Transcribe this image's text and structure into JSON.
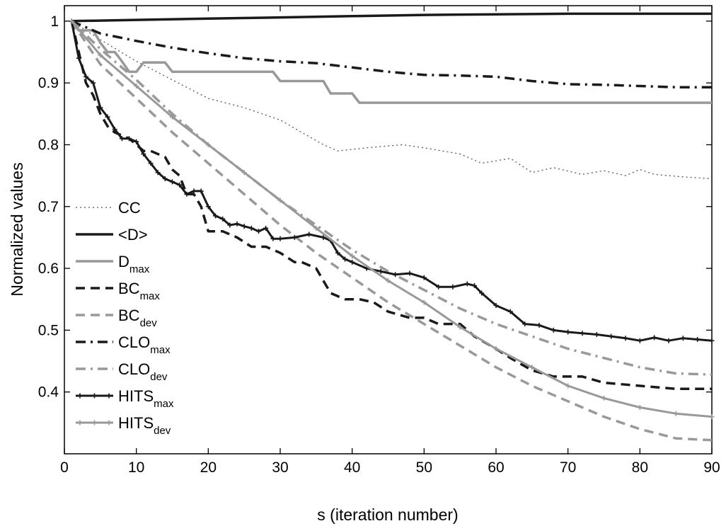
{
  "chart_data": {
    "type": "line",
    "xlabel": "s (iteration number)",
    "ylabel": "Normalized values",
    "xlim": [
      0,
      90
    ],
    "ylim": [
      0.3,
      1.025
    ],
    "x_ticks": [
      0,
      10,
      20,
      30,
      40,
      50,
      60,
      70,
      80,
      90
    ],
    "y_ticks": [
      0.4,
      0.5,
      0.6,
      0.7,
      0.8,
      0.9,
      1
    ],
    "grid": false,
    "legend_placement": "middle-left",
    "series": [
      {
        "name": "CC",
        "legend_main": "CC",
        "legend_sub": "",
        "color": "#555555",
        "style": "dotted",
        "width": 1.3,
        "marker": false,
        "points": [
          [
            1,
            1.0
          ],
          [
            5,
            0.97
          ],
          [
            10,
            0.935
          ],
          [
            15,
            0.905
          ],
          [
            20,
            0.875
          ],
          [
            25,
            0.86
          ],
          [
            30,
            0.84
          ],
          [
            33,
            0.82
          ],
          [
            36,
            0.8
          ],
          [
            38,
            0.79
          ],
          [
            42,
            0.795
          ],
          [
            47,
            0.8
          ],
          [
            50,
            0.795
          ],
          [
            55,
            0.785
          ],
          [
            58,
            0.77
          ],
          [
            62,
            0.778
          ],
          [
            65,
            0.755
          ],
          [
            68,
            0.763
          ],
          [
            72,
            0.752
          ],
          [
            75,
            0.758
          ],
          [
            78,
            0.75
          ],
          [
            80,
            0.76
          ],
          [
            82,
            0.752
          ],
          [
            86,
            0.748
          ],
          [
            90,
            0.745
          ]
        ]
      },
      {
        "name": "<D>",
        "legend_main": "<D>",
        "legend_sub": "",
        "color": "#1a1a1a",
        "style": "solid",
        "width": 3.5,
        "marker": false,
        "points": [
          [
            1,
            1.0
          ],
          [
            10,
            1.002
          ],
          [
            20,
            1.004
          ],
          [
            30,
            1.006
          ],
          [
            40,
            1.008
          ],
          [
            50,
            1.01
          ],
          [
            60,
            1.011
          ],
          [
            70,
            1.012
          ],
          [
            80,
            1.012
          ],
          [
            90,
            1.012
          ]
        ]
      },
      {
        "name": "Dmax",
        "legend_main": "D",
        "legend_sub": "max",
        "color": "#999999",
        "style": "solid",
        "width": 3.5,
        "marker": false,
        "points": [
          [
            1,
            1.0
          ],
          [
            2,
            0.985
          ],
          [
            4,
            0.985
          ],
          [
            5,
            0.965
          ],
          [
            6,
            0.95
          ],
          [
            7,
            0.95
          ],
          [
            8,
            0.935
          ],
          [
            9,
            0.918
          ],
          [
            10,
            0.918
          ],
          [
            11,
            0.933
          ],
          [
            14,
            0.933
          ],
          [
            15,
            0.918
          ],
          [
            29,
            0.918
          ],
          [
            30,
            0.903
          ],
          [
            36,
            0.903
          ],
          [
            37,
            0.883
          ],
          [
            40,
            0.883
          ],
          [
            41,
            0.868
          ],
          [
            90,
            0.868
          ]
        ]
      },
      {
        "name": "BCmax",
        "legend_main": "BC",
        "legend_sub": "max",
        "color": "#1a1a1a",
        "style": "dashed",
        "width": 3.5,
        "marker": false,
        "points": [
          [
            1,
            1.0
          ],
          [
            2,
            0.95
          ],
          [
            3,
            0.9
          ],
          [
            4,
            0.88
          ],
          [
            5,
            0.85
          ],
          [
            6,
            0.83
          ],
          [
            7,
            0.82
          ],
          [
            9,
            0.81
          ],
          [
            10,
            0.8
          ],
          [
            11,
            0.79
          ],
          [
            12,
            0.79
          ],
          [
            14,
            0.78
          ],
          [
            15,
            0.76
          ],
          [
            16,
            0.75
          ],
          [
            17,
            0.72
          ],
          [
            18,
            0.72
          ],
          [
            19,
            0.7
          ],
          [
            20,
            0.66
          ],
          [
            22,
            0.66
          ],
          [
            24,
            0.65
          ],
          [
            26,
            0.635
          ],
          [
            28,
            0.635
          ],
          [
            30,
            0.625
          ],
          [
            32,
            0.61
          ],
          [
            33,
            0.61
          ],
          [
            35,
            0.6
          ],
          [
            36,
            0.58
          ],
          [
            37,
            0.56
          ],
          [
            39,
            0.55
          ],
          [
            41,
            0.55
          ],
          [
            43,
            0.545
          ],
          [
            45,
            0.53
          ],
          [
            48,
            0.52
          ],
          [
            50,
            0.52
          ],
          [
            52,
            0.51
          ],
          [
            55,
            0.51
          ],
          [
            57,
            0.49
          ],
          [
            60,
            0.47
          ],
          [
            62,
            0.455
          ],
          [
            65,
            0.435
          ],
          [
            68,
            0.425
          ],
          [
            72,
            0.425
          ],
          [
            75,
            0.415
          ],
          [
            80,
            0.41
          ],
          [
            85,
            0.405
          ],
          [
            90,
            0.405
          ]
        ]
      },
      {
        "name": "BCdev",
        "legend_main": "BC",
        "legend_sub": "dev",
        "color": "#999999",
        "style": "dashed",
        "width": 3.5,
        "marker": false,
        "points": [
          [
            1,
            1.0
          ],
          [
            5,
            0.93
          ],
          [
            10,
            0.875
          ],
          [
            15,
            0.82
          ],
          [
            20,
            0.77
          ],
          [
            25,
            0.72
          ],
          [
            30,
            0.67
          ],
          [
            35,
            0.625
          ],
          [
            40,
            0.585
          ],
          [
            45,
            0.545
          ],
          [
            50,
            0.51
          ],
          [
            55,
            0.475
          ],
          [
            60,
            0.44
          ],
          [
            65,
            0.41
          ],
          [
            70,
            0.385
          ],
          [
            75,
            0.36
          ],
          [
            80,
            0.34
          ],
          [
            85,
            0.325
          ],
          [
            90,
            0.322
          ]
        ]
      },
      {
        "name": "CLOmax",
        "legend_main": "CLO",
        "legend_sub": "max",
        "color": "#1a1a1a",
        "style": "dashdot",
        "width": 3.5,
        "marker": false,
        "points": [
          [
            1,
            1.0
          ],
          [
            5,
            0.98
          ],
          [
            10,
            0.968
          ],
          [
            15,
            0.957
          ],
          [
            20,
            0.948
          ],
          [
            25,
            0.94
          ],
          [
            30,
            0.935
          ],
          [
            35,
            0.932
          ],
          [
            40,
            0.925
          ],
          [
            45,
            0.918
          ],
          [
            50,
            0.913
          ],
          [
            55,
            0.912
          ],
          [
            60,
            0.91
          ],
          [
            65,
            0.903
          ],
          [
            70,
            0.898
          ],
          [
            75,
            0.897
          ],
          [
            80,
            0.895
          ],
          [
            85,
            0.893
          ],
          [
            90,
            0.893
          ]
        ]
      },
      {
        "name": "CLOdev",
        "legend_main": "CLO",
        "legend_sub": "dev",
        "color": "#999999",
        "style": "dashdot",
        "width": 3.5,
        "marker": false,
        "points": [
          [
            1,
            1.0
          ],
          [
            5,
            0.955
          ],
          [
            10,
            0.905
          ],
          [
            15,
            0.85
          ],
          [
            20,
            0.8
          ],
          [
            25,
            0.755
          ],
          [
            30,
            0.71
          ],
          [
            35,
            0.67
          ],
          [
            40,
            0.63
          ],
          [
            45,
            0.595
          ],
          [
            50,
            0.565
          ],
          [
            55,
            0.535
          ],
          [
            60,
            0.51
          ],
          [
            65,
            0.49
          ],
          [
            70,
            0.47
          ],
          [
            75,
            0.455
          ],
          [
            80,
            0.44
          ],
          [
            85,
            0.43
          ],
          [
            90,
            0.428
          ]
        ]
      },
      {
        "name": "HITSmax",
        "legend_main": "HITS",
        "legend_sub": "max",
        "color": "#1a1a1a",
        "style": "solid",
        "width": 3.0,
        "marker": true,
        "points": [
          [
            1,
            1.0
          ],
          [
            2,
            0.94
          ],
          [
            3,
            0.91
          ],
          [
            4,
            0.9
          ],
          [
            5,
            0.86
          ],
          [
            6,
            0.845
          ],
          [
            7,
            0.825
          ],
          [
            8,
            0.81
          ],
          [
            9,
            0.81
          ],
          [
            10,
            0.805
          ],
          [
            11,
            0.785
          ],
          [
            12,
            0.77
          ],
          [
            13,
            0.755
          ],
          [
            14,
            0.745
          ],
          [
            15,
            0.74
          ],
          [
            16,
            0.735
          ],
          [
            17,
            0.72
          ],
          [
            18,
            0.725
          ],
          [
            19,
            0.725
          ],
          [
            20,
            0.7
          ],
          [
            21,
            0.685
          ],
          [
            22,
            0.68
          ],
          [
            23,
            0.67
          ],
          [
            24,
            0.672
          ],
          [
            25,
            0.668
          ],
          [
            26,
            0.665
          ],
          [
            27,
            0.66
          ],
          [
            28,
            0.665
          ],
          [
            29,
            0.648
          ],
          [
            30,
            0.648
          ],
          [
            32,
            0.65
          ],
          [
            34,
            0.655
          ],
          [
            36,
            0.65
          ],
          [
            37,
            0.645
          ],
          [
            38,
            0.625
          ],
          [
            39,
            0.615
          ],
          [
            40,
            0.61
          ],
          [
            42,
            0.6
          ],
          [
            44,
            0.595
          ],
          [
            46,
            0.59
          ],
          [
            48,
            0.592
          ],
          [
            50,
            0.585
          ],
          [
            52,
            0.57
          ],
          [
            54,
            0.57
          ],
          [
            56,
            0.575
          ],
          [
            57,
            0.572
          ],
          [
            58,
            0.56
          ],
          [
            60,
            0.54
          ],
          [
            62,
            0.53
          ],
          [
            64,
            0.51
          ],
          [
            66,
            0.508
          ],
          [
            68,
            0.5
          ],
          [
            70,
            0.497
          ],
          [
            72,
            0.495
          ],
          [
            74,
            0.493
          ],
          [
            76,
            0.49
          ],
          [
            78,
            0.487
          ],
          [
            80,
            0.483
          ],
          [
            82,
            0.488
          ],
          [
            84,
            0.483
          ],
          [
            86,
            0.487
          ],
          [
            88,
            0.485
          ],
          [
            90,
            0.483
          ]
        ]
      },
      {
        "name": "HITSdev",
        "legend_main": "HITS",
        "legend_sub": "dev",
        "color": "#999999",
        "style": "solid",
        "width": 3.0,
        "marker": true,
        "points": [
          [
            1,
            1.0
          ],
          [
            5,
            0.945
          ],
          [
            10,
            0.895
          ],
          [
            15,
            0.845
          ],
          [
            20,
            0.8
          ],
          [
            25,
            0.755
          ],
          [
            30,
            0.71
          ],
          [
            35,
            0.665
          ],
          [
            40,
            0.62
          ],
          [
            45,
            0.58
          ],
          [
            50,
            0.545
          ],
          [
            55,
            0.505
          ],
          [
            60,
            0.47
          ],
          [
            65,
            0.44
          ],
          [
            70,
            0.41
          ],
          [
            75,
            0.39
          ],
          [
            80,
            0.375
          ],
          [
            85,
            0.365
          ],
          [
            90,
            0.36
          ]
        ]
      }
    ]
  }
}
